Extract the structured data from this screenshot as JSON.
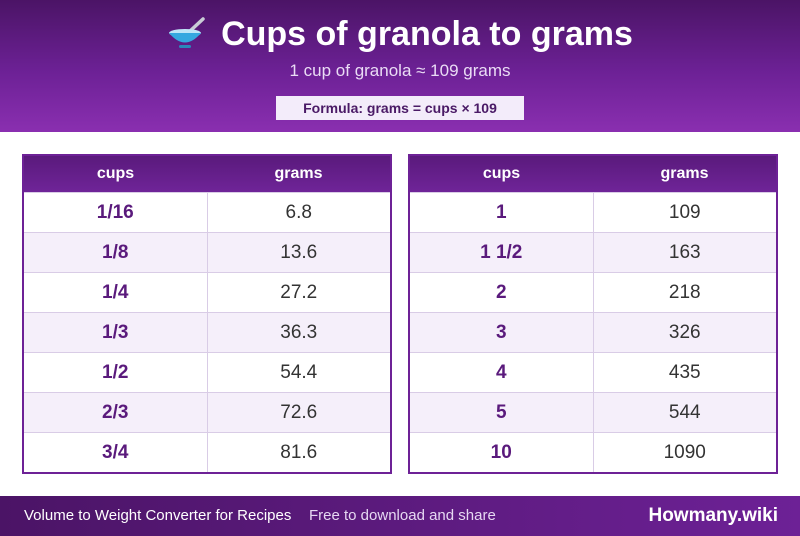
{
  "header": {
    "title": "Cups of granola to grams",
    "subtitle": "1 cup of granola ≈ 109 grams",
    "formula": "Formula: grams = cups × 109",
    "icon": "bowl-spoon-icon"
  },
  "tables": {
    "left": {
      "col_cups": "cups",
      "col_grams": "grams",
      "rows": [
        {
          "cups": "1/16",
          "grams": "6.8"
        },
        {
          "cups": "1/8",
          "grams": "13.6"
        },
        {
          "cups": "1/4",
          "grams": "27.2"
        },
        {
          "cups": "1/3",
          "grams": "36.3"
        },
        {
          "cups": "1/2",
          "grams": "54.4"
        },
        {
          "cups": "2/3",
          "grams": "72.6"
        },
        {
          "cups": "3/4",
          "grams": "81.6"
        }
      ]
    },
    "right": {
      "col_cups": "cups",
      "col_grams": "grams",
      "rows": [
        {
          "cups": "1",
          "grams": "109"
        },
        {
          "cups": "1 1/2",
          "grams": "163"
        },
        {
          "cups": "2",
          "grams": "218"
        },
        {
          "cups": "3",
          "grams": "326"
        },
        {
          "cups": "4",
          "grams": "435"
        },
        {
          "cups": "5",
          "grams": "544"
        },
        {
          "cups": "10",
          "grams": "1090"
        }
      ]
    }
  },
  "footer": {
    "left": "Volume to Weight Converter for Recipes",
    "middle": "Free to download and share",
    "brand": "Howmany.wiki"
  },
  "colors": {
    "primary": "#6d2196",
    "dark": "#4b1466",
    "row_alt": "#f5effa"
  }
}
